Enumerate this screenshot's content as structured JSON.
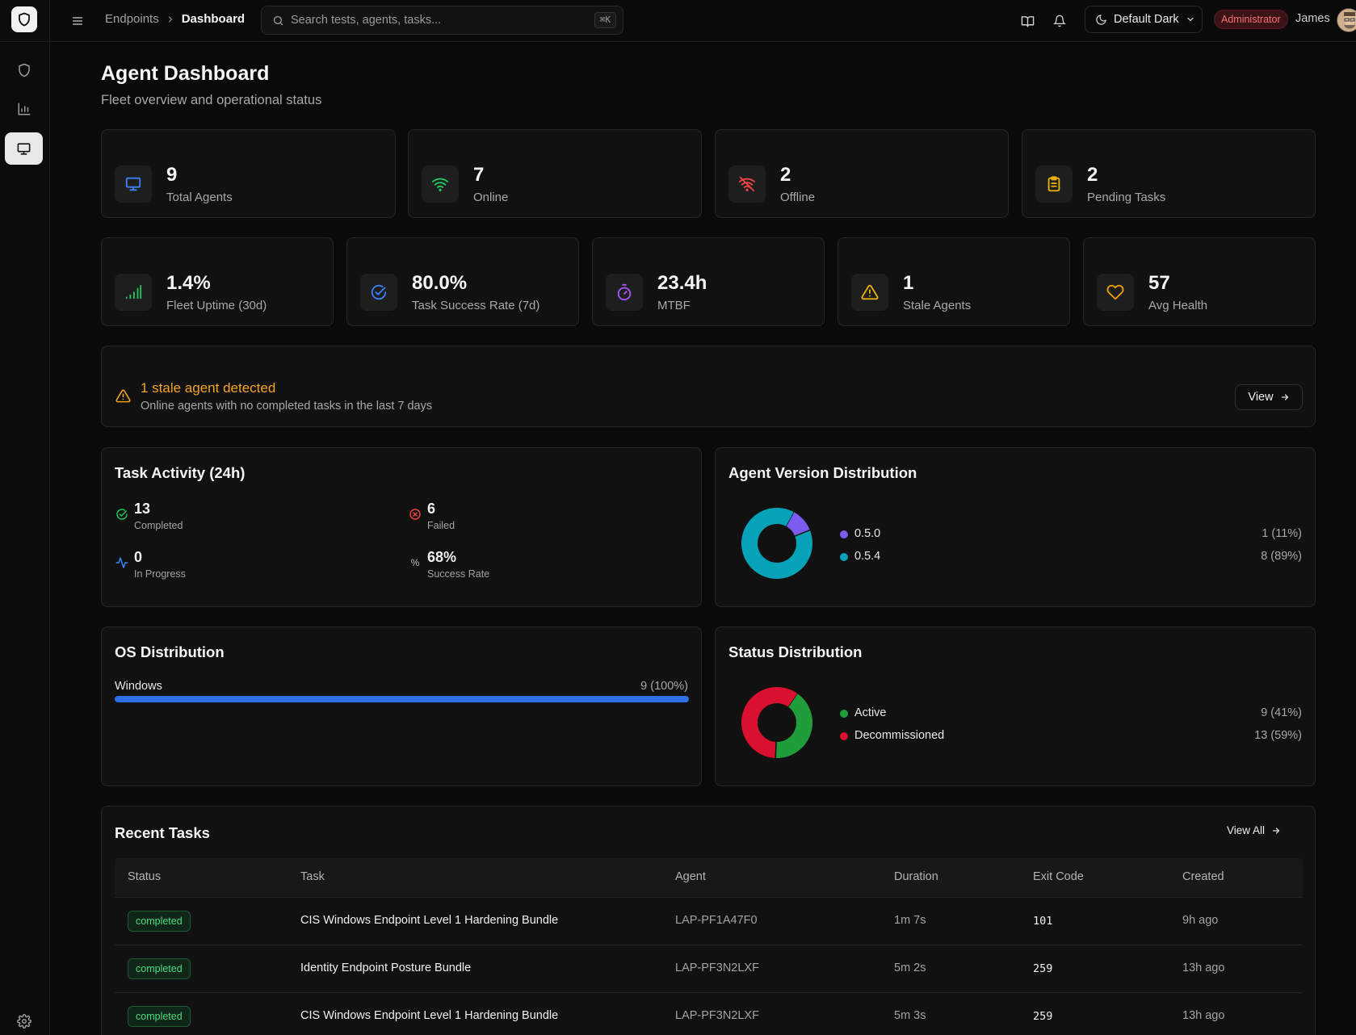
{
  "topbar": {
    "breadcrumb": [
      "Endpoints",
      "Dashboard"
    ],
    "search_placeholder": "Search tests, agents, tasks...",
    "search_shortcut": "⌘K",
    "theme_label": "Default Dark",
    "role_badge": "Administrator",
    "user_name": "James"
  },
  "page": {
    "title": "Agent Dashboard",
    "subtitle": "Fleet overview and operational status"
  },
  "stats_top": [
    {
      "value": "9",
      "label": "Total Agents",
      "icon": "monitor-icon",
      "color": "#3b82f6"
    },
    {
      "value": "7",
      "label": "Online",
      "icon": "wifi-icon",
      "color": "#22c55e"
    },
    {
      "value": "2",
      "label": "Offline",
      "icon": "wifi-off-icon",
      "color": "#ef4444"
    },
    {
      "value": "2",
      "label": "Pending Tasks",
      "icon": "clipboard-icon",
      "color": "#eab308"
    }
  ],
  "stats_bottom": [
    {
      "value": "1.4%",
      "label": "Fleet Uptime (30d)",
      "icon": "signal-bars-icon",
      "color": "#22c55e"
    },
    {
      "value": "80.0%",
      "label": "Task Success Rate (7d)",
      "icon": "check-circle-icon",
      "color": "#3b82f6"
    },
    {
      "value": "23.4h",
      "label": "MTBF",
      "icon": "timer-icon",
      "color": "#a855f7"
    },
    {
      "value": "1",
      "label": "Stale Agents",
      "icon": "warning-icon",
      "color": "#eab308"
    },
    {
      "value": "57",
      "label": "Avg Health",
      "icon": "heart-icon",
      "color": "#f59e0b"
    }
  ],
  "alert": {
    "title": "1 stale agent detected",
    "subtitle": "Online agents with no completed tasks in the last 7 days",
    "button": "View"
  },
  "task_activity": {
    "title": "Task Activity (24h)",
    "items": [
      {
        "value": "13",
        "label": "Completed"
      },
      {
        "value": "6",
        "label": "Failed"
      },
      {
        "value": "0",
        "label": "In Progress"
      },
      {
        "value": "68%",
        "label": "Success Rate"
      }
    ],
    "percent_symbol": "%"
  },
  "version_dist": {
    "title": "Agent Version Distribution",
    "items": [
      {
        "name": "0.5.0",
        "count": "1 (11%)",
        "value": 1,
        "color": "#7c5cf0"
      },
      {
        "name": "0.5.4",
        "count": "8 (89%)",
        "value": 8,
        "color": "#06a3b8"
      }
    ]
  },
  "os_dist": {
    "title": "OS Distribution",
    "items": [
      {
        "name": "Windows",
        "count": "9 (100%)",
        "fraction": 1.0,
        "color": "#2f6fe8"
      }
    ]
  },
  "status_dist": {
    "title": "Status Distribution",
    "items": [
      {
        "name": "Active",
        "count": "9 (41%)",
        "value": 9,
        "color": "#1f9d3a"
      },
      {
        "name": "Decommissioned",
        "count": "13 (59%)",
        "value": 13,
        "color": "#d9102f"
      }
    ]
  },
  "recent_tasks": {
    "title": "Recent Tasks",
    "view_all": "View All",
    "columns": [
      "Status",
      "Task",
      "Agent",
      "Duration",
      "Exit Code",
      "Created"
    ],
    "rows": [
      {
        "status": "completed",
        "task": "CIS Windows Endpoint Level 1 Hardening Bundle",
        "agent": "LAP-PF1A47F0",
        "duration": "1m 7s",
        "exit_code": "101",
        "created": "9h ago"
      },
      {
        "status": "completed",
        "task": "Identity Endpoint Posture Bundle",
        "agent": "LAP-PF3N2LXF",
        "duration": "5m 2s",
        "exit_code": "259",
        "created": "13h ago"
      },
      {
        "status": "completed",
        "task": "CIS Windows Endpoint Level 1 Hardening Bundle",
        "agent": "LAP-PF3N2LXF",
        "duration": "5m 3s",
        "exit_code": "259",
        "created": "13h ago"
      }
    ]
  }
}
